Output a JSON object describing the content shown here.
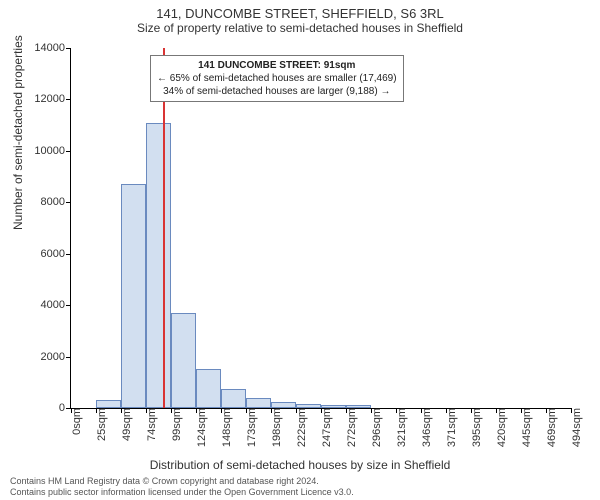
{
  "title": "141, DUNCOMBE STREET, SHEFFIELD, S6 3RL",
  "subtitle": "Size of property relative to semi-detached houses in Sheffield",
  "ylabel": "Number of semi-detached properties",
  "xlabel": "Distribution of semi-detached houses by size in Sheffield",
  "chart": {
    "type": "histogram",
    "bar_fill": "#d2dff0",
    "bar_stroke": "#6a8abf",
    "marker_color": "#d93434",
    "background_color": "#ffffff",
    "axis_color": "#000000",
    "ylim": [
      0,
      14000
    ],
    "ytick_step": 2000,
    "ytick_labels": [
      "0",
      "2000",
      "4000",
      "6000",
      "8000",
      "10000",
      "12000",
      "14000"
    ],
    "xtick_labels": [
      "0sqm",
      "25sqm",
      "49sqm",
      "74sqm",
      "99sqm",
      "124sqm",
      "148sqm",
      "173sqm",
      "198sqm",
      "222sqm",
      "247sqm",
      "272sqm",
      "296sqm",
      "321sqm",
      "346sqm",
      "371sqm",
      "395sqm",
      "420sqm",
      "445sqm",
      "469sqm",
      "494sqm"
    ],
    "xtick_count": 21,
    "bars": [
      {
        "bin_index": 0,
        "value": 0
      },
      {
        "bin_index": 1,
        "value": 300
      },
      {
        "bin_index": 2,
        "value": 8700
      },
      {
        "bin_index": 3,
        "value": 11100
      },
      {
        "bin_index": 4,
        "value": 3700
      },
      {
        "bin_index": 5,
        "value": 1500
      },
      {
        "bin_index": 6,
        "value": 750
      },
      {
        "bin_index": 7,
        "value": 400
      },
      {
        "bin_index": 8,
        "value": 250
      },
      {
        "bin_index": 9,
        "value": 150
      },
      {
        "bin_index": 10,
        "value": 100
      },
      {
        "bin_index": 11,
        "value": 100
      },
      {
        "bin_index": 12,
        "value": 0
      },
      {
        "bin_index": 13,
        "value": 0
      },
      {
        "bin_index": 14,
        "value": 0
      },
      {
        "bin_index": 15,
        "value": 0
      },
      {
        "bin_index": 16,
        "value": 0
      },
      {
        "bin_index": 17,
        "value": 0
      },
      {
        "bin_index": 18,
        "value": 0
      },
      {
        "bin_index": 19,
        "value": 0
      }
    ],
    "marker_x_value": 91,
    "x_range": [
      0,
      494
    ]
  },
  "callout": {
    "line1": "141 DUNCOMBE STREET: 91sqm",
    "line2": "← 65% of semi-detached houses are smaller (17,469)",
    "line3": "34% of semi-detached houses are larger (9,188) →"
  },
  "caption_line1": "Contains HM Land Registry data © Crown copyright and database right 2024.",
  "caption_line2": "Contains public sector information licensed under the Open Government Licence v3.0."
}
